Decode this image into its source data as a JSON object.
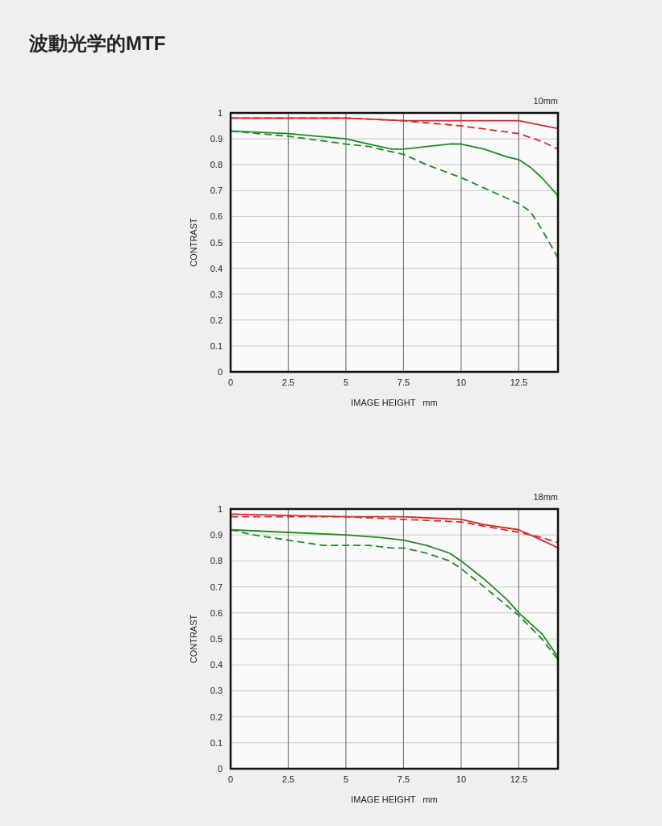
{
  "chart_data": [
    {
      "type": "line",
      "title": "波動光学的MTF",
      "subtitle": "10mm",
      "xlabel": "IMAGE HEIGHT   mm",
      "ylabel": "CONTRAST",
      "xlim": [
        0,
        14.2
      ],
      "xticks": [
        0,
        2.5,
        5,
        7.5,
        10,
        12.5
      ],
      "ylim": [
        0,
        1
      ],
      "yticks": [
        0,
        0.1,
        0.2,
        0.3,
        0.4,
        0.5,
        0.6,
        0.7,
        0.8,
        0.9,
        1
      ],
      "grid": true,
      "marker": "none",
      "series": [
        {
          "color": "#d42a2a",
          "line_style": "solid",
          "x": [
            0,
            5,
            7.5,
            10,
            12.5,
            14.2
          ],
          "values": [
            0.98,
            0.98,
            0.97,
            0.97,
            0.97,
            0.94
          ]
        },
        {
          "color": "#d42a2a",
          "line_style": "dashed",
          "x": [
            0,
            5,
            7.5,
            10,
            12.5,
            13.5,
            14.2
          ],
          "values": [
            0.98,
            0.98,
            0.97,
            0.95,
            0.92,
            0.89,
            0.86
          ]
        },
        {
          "color": "#1f8a24",
          "line_style": "solid",
          "x": [
            0,
            2.5,
            5,
            6,
            7,
            7.5,
            8.5,
            9.5,
            10,
            11,
            12,
            12.5,
            13,
            13.5,
            14.2
          ],
          "values": [
            0.93,
            0.92,
            0.9,
            0.88,
            0.86,
            0.86,
            0.87,
            0.88,
            0.88,
            0.86,
            0.83,
            0.82,
            0.79,
            0.75,
            0.68
          ]
        },
        {
          "color": "#1f8a24",
          "line_style": "dashed",
          "x": [
            0,
            2.5,
            5,
            6,
            7.5,
            8.5,
            10,
            11,
            12.5,
            13,
            13.5,
            14.2
          ],
          "values": [
            0.93,
            0.91,
            0.88,
            0.87,
            0.84,
            0.8,
            0.75,
            0.71,
            0.65,
            0.62,
            0.55,
            0.44
          ]
        }
      ]
    },
    {
      "type": "line",
      "subtitle": "18mm",
      "xlabel": "IMAGE HEIGHT   mm",
      "ylabel": "CONTRAST",
      "xlim": [
        0,
        14.2
      ],
      "xticks": [
        0,
        2.5,
        5,
        7.5,
        10,
        12.5
      ],
      "ylim": [
        0,
        1
      ],
      "yticks": [
        0,
        0.1,
        0.2,
        0.3,
        0.4,
        0.5,
        0.6,
        0.7,
        0.8,
        0.9,
        1
      ],
      "grid": true,
      "marker": "none",
      "series": [
        {
          "color": "#d42a2a",
          "line_style": "solid",
          "x": [
            0,
            5,
            7.5,
            10,
            11,
            12.5,
            13.5,
            14.2
          ],
          "values": [
            0.98,
            0.97,
            0.97,
            0.96,
            0.94,
            0.92,
            0.88,
            0.85
          ]
        },
        {
          "color": "#d42a2a",
          "line_style": "dashed",
          "x": [
            0,
            5,
            7.5,
            10,
            12.5,
            13.5,
            14.2
          ],
          "values": [
            0.97,
            0.97,
            0.96,
            0.95,
            0.91,
            0.89,
            0.87
          ]
        },
        {
          "color": "#1f8a24",
          "line_style": "solid",
          "x": [
            0,
            2.5,
            5,
            6.5,
            7.5,
            8.5,
            9.5,
            10,
            11,
            12,
            12.5,
            13.5,
            14.2
          ],
          "values": [
            0.92,
            0.91,
            0.9,
            0.89,
            0.88,
            0.86,
            0.83,
            0.8,
            0.73,
            0.65,
            0.6,
            0.52,
            0.43
          ]
        },
        {
          "color": "#1f8a24",
          "line_style": "dashed",
          "x": [
            0,
            1,
            2.5,
            4,
            5,
            6,
            7,
            7.5,
            8.5,
            9.5,
            10,
            11,
            12.5,
            13.5,
            14.2
          ],
          "values": [
            0.92,
            0.9,
            0.88,
            0.86,
            0.86,
            0.86,
            0.85,
            0.85,
            0.83,
            0.8,
            0.77,
            0.7,
            0.59,
            0.5,
            0.42
          ]
        }
      ]
    }
  ]
}
